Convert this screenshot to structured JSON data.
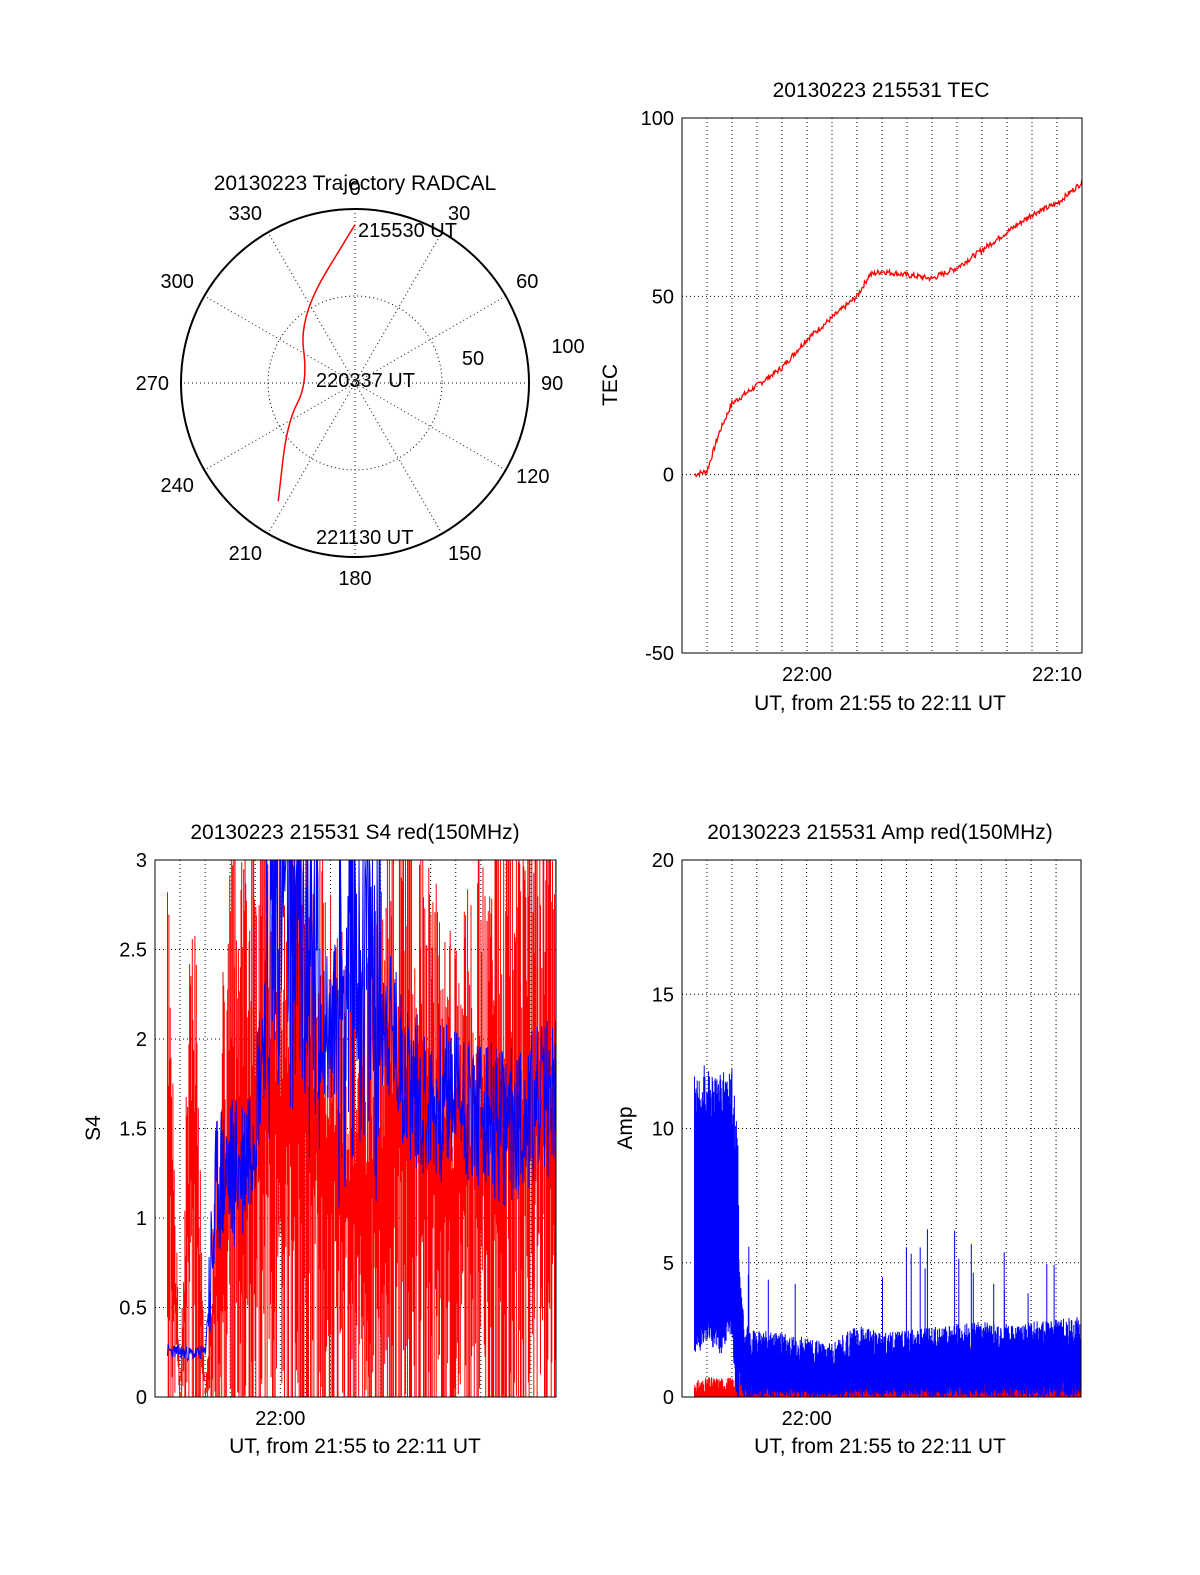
{
  "colors": {
    "red": "#ff0000",
    "blue": "#0000ff",
    "axis": "#000000",
    "grid": "#000000"
  },
  "chart_data": [
    {
      "id": "trajectory",
      "type": "polar",
      "title": "20130223 Trajectory RADCAL",
      "azimuth_labels": [
        "0",
        "30",
        "60",
        "90",
        "120",
        "150",
        "180",
        "210",
        "240",
        "270",
        "300",
        "330"
      ],
      "radius_labels": [
        "50",
        "100"
      ],
      "rlim": [
        0,
        100
      ],
      "track": {
        "color": "red",
        "points": [
          {
            "az": 0,
            "r": 91
          },
          {
            "az": 320,
            "r": 50
          },
          {
            "az": 270,
            "r": 27
          },
          {
            "az": 240,
            "r": 45
          },
          {
            "az": 213,
            "r": 81
          }
        ]
      },
      "annotations": [
        "215530 UT",
        "220337 UT",
        "221130 UT"
      ]
    },
    {
      "id": "tec",
      "type": "line",
      "title": "20130223 215531 TEC",
      "xlabel": "UT, from 21:55 to 22:11 UT",
      "ylabel": "TEC",
      "xlim": [
        "21:55",
        "22:11"
      ],
      "ylim": [
        -50,
        100
      ],
      "xticks": [
        "22:00",
        "22:10"
      ],
      "yticks": [
        "100",
        "50",
        "0",
        "-50"
      ],
      "grid": true,
      "series": [
        {
          "color": "red",
          "x": [
            "21:55:30",
            "21:56:00",
            "21:56:30",
            "21:57:00",
            "21:58:00",
            "21:59:00",
            "22:00:00",
            "22:01:00",
            "22:02:00",
            "22:02:30",
            "22:03:00",
            "22:04:00",
            "22:05:00",
            "22:06:00",
            "22:07:00",
            "22:08:00",
            "22:09:00",
            "22:10:00",
            "22:11:00"
          ],
          "y": [
            0,
            1,
            12,
            20,
            25,
            30,
            38,
            44,
            50,
            56,
            57,
            56,
            55,
            58,
            63,
            68,
            73,
            76,
            82
          ]
        }
      ]
    },
    {
      "id": "s4",
      "type": "line",
      "title": "20130223 215531 S4 red(150MHz)",
      "xlabel": "UT, from 21:55 to 22:11 UT",
      "ylabel": "S4",
      "xlim": [
        "21:55",
        "22:11"
      ],
      "ylim": [
        0,
        3
      ],
      "xticks": [
        "22:00"
      ],
      "yticks": [
        "3",
        "2.5",
        "2",
        "1.5",
        "1",
        "0.5",
        "0"
      ],
      "grid": true,
      "series": [
        {
          "color": "red",
          "x": [
            "21:55:30",
            "21:56:00",
            "21:56:30",
            "21:57:00",
            "21:58:00",
            "21:59:00",
            "22:00:00",
            "22:01:00",
            "22:02:00",
            "22:03:00",
            "22:04:00",
            "22:05:00",
            "22:06:00",
            "22:07:00",
            "22:08:00",
            "22:09:00",
            "22:10:00",
            "22:11:00"
          ],
          "y": [
            3,
            0,
            3,
            0,
            3,
            3,
            3,
            3,
            2.5,
            2,
            2.5,
            3,
            2.6,
            2.2,
            2.8,
            3,
            3,
            3
          ]
        },
        {
          "color": "blue",
          "x": [
            "21:55:30",
            "21:56:00",
            "21:56:30",
            "21:57:00",
            "21:57:30",
            "21:58:00",
            "21:58:30",
            "21:59:00",
            "22:00:00",
            "22:01:00",
            "22:02:00",
            "22:03:00",
            "22:04:00",
            "22:05:00",
            "22:06:00",
            "22:07:00",
            "22:08:00",
            "22:09:00",
            "22:10:00",
            "22:11:00"
          ],
          "y": [
            0.26,
            0.25,
            0.24,
            0.25,
            1.2,
            1.25,
            1.3,
            1.6,
            3,
            2.5,
            2,
            2.6,
            2.2,
            1.8,
            1.6,
            1.7,
            1.55,
            1.5,
            1.6,
            1.7
          ]
        }
      ]
    },
    {
      "id": "amp",
      "type": "line",
      "title": "20130223 215531 Amp red(150MHz)",
      "xlabel": "UT, from 21:55 to 22:11 UT",
      "ylabel": "Amp",
      "xlim": [
        "21:55",
        "22:11"
      ],
      "ylim": [
        0,
        20
      ],
      "xticks": [
        "22:00"
      ],
      "yticks": [
        "20",
        "15",
        "10",
        "5",
        "0"
      ],
      "grid": true,
      "series": [
        {
          "color": "red",
          "x": [
            "21:55:30",
            "21:56:00",
            "21:57:00",
            "21:58:00",
            "22:00:00",
            "22:02:00",
            "22:04:00",
            "22:06:00",
            "22:08:00",
            "22:10:00",
            "22:11:00"
          ],
          "y": [
            0.4,
            0.5,
            0.5,
            1,
            1,
            0.8,
            1.2,
            1.4,
            1.3,
            1.2,
            1.3
          ]
        },
        {
          "color": "blue",
          "x": [
            "21:55:30",
            "21:56:00",
            "21:56:30",
            "21:57:00",
            "21:57:30",
            "21:58:00",
            "21:59:00",
            "22:00:00",
            "22:01:00",
            "22:02:00",
            "22:03:00",
            "22:04:00",
            "22:05:00",
            "22:06:00",
            "22:07:00",
            "22:08:00",
            "22:09:00",
            "22:10:00",
            "22:11:00"
          ],
          "y": [
            6.5,
            7,
            6.5,
            7,
            1.5,
            1.3,
            1.2,
            1.0,
            0.8,
            1.5,
            1.2,
            1.3,
            1.4,
            1.5,
            1.6,
            1.5,
            1.6,
            1.7,
            1.8
          ]
        }
      ]
    }
  ]
}
